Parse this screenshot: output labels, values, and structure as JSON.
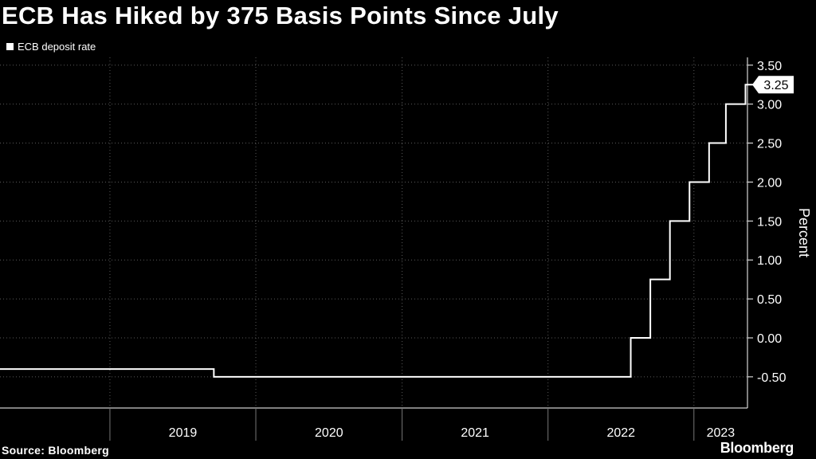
{
  "title": "ECB Has Hiked by 375 Basis Points Since July",
  "footer": {
    "source": "Source: Bloomberg",
    "brand": "Bloomberg"
  },
  "chart_data": {
    "type": "line",
    "line_shape": "step",
    "title": "ECB Has Hiked by 375 Basis Points Since July",
    "ylabel": "Percent",
    "ylim": [
      -0.9,
      3.6
    ],
    "y_ticks": [
      "3.50",
      "3.00",
      "2.50",
      "2.00",
      "1.50",
      "1.00",
      "0.50",
      "0.00",
      "-0.50"
    ],
    "x_tick_labels": [
      "2019",
      "2020",
      "2021",
      "2022",
      "2023"
    ],
    "xlim": [
      "2018-04-01",
      "2023-05-15"
    ],
    "legend": "top-left",
    "grid": true,
    "series": [
      {
        "name": "ECB deposit rate",
        "color": "#ffffff",
        "last_value_label": "3.25",
        "points": [
          {
            "x": "2018-04-01",
            "y": -0.4
          },
          {
            "x": "2019-09-18",
            "y": -0.5
          },
          {
            "x": "2022-07-27",
            "y": 0.0
          },
          {
            "x": "2022-09-14",
            "y": 0.75
          },
          {
            "x": "2022-11-02",
            "y": 1.5
          },
          {
            "x": "2022-12-21",
            "y": 2.0
          },
          {
            "x": "2023-02-08",
            "y": 2.5
          },
          {
            "x": "2023-03-22",
            "y": 3.0
          },
          {
            "x": "2023-05-10",
            "y": 3.25
          }
        ]
      }
    ]
  }
}
